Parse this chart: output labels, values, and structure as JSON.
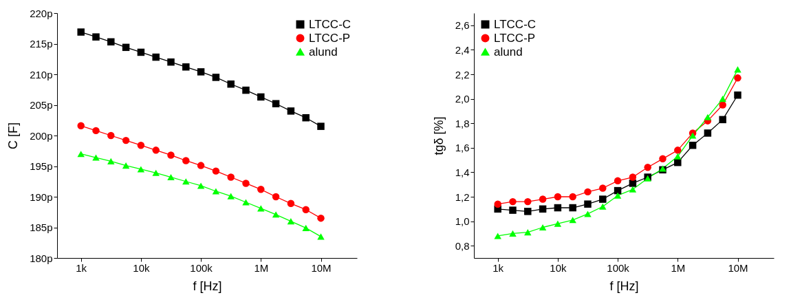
{
  "chart_data": [
    {
      "type": "line",
      "xlabel": "f [Hz]",
      "ylabel": "C [F]",
      "log": "x",
      "legend": "top right",
      "grid": false,
      "x": [
        1000,
        1778,
        3162,
        5623,
        10000,
        17783,
        31623,
        56234,
        100000,
        177828,
        316228,
        562341,
        1000000,
        1778279,
        3162278,
        5623413,
        10000000
      ],
      "xlim": [
        400,
        40000000
      ],
      "xticks": [
        {
          "value": 1000,
          "label": "1k"
        },
        {
          "value": 10000,
          "label": "10k"
        },
        {
          "value": 100000,
          "label": "100k"
        },
        {
          "value": 1000000,
          "label": "1M"
        },
        {
          "value": 10000000,
          "label": "10M"
        }
      ],
      "ylim": [
        180,
        220
      ],
      "yticks": [
        {
          "value": 180,
          "label": "180p"
        },
        {
          "value": 185,
          "label": "185p"
        },
        {
          "value": 190,
          "label": "190p"
        },
        {
          "value": 195,
          "label": "195p"
        },
        {
          "value": 200,
          "label": "200p"
        },
        {
          "value": 205,
          "label": "205p"
        },
        {
          "value": 210,
          "label": "210p"
        },
        {
          "value": 215,
          "label": "215p"
        },
        {
          "value": 220,
          "label": "220p"
        }
      ],
      "series": [
        {
          "name": "LTCC-C",
          "color": "#000000",
          "marker": "square",
          "values": [
            216.9,
            216.1,
            215.3,
            214.4,
            213.6,
            212.8,
            212.0,
            211.2,
            210.4,
            209.5,
            208.4,
            207.4,
            206.3,
            205.2,
            204.0,
            202.9,
            201.5
          ]
        },
        {
          "name": "LTCC-P",
          "color": "#ff0000",
          "marker": "circle",
          "values": [
            201.6,
            200.8,
            200.0,
            199.2,
            198.4,
            197.6,
            196.8,
            195.9,
            195.1,
            194.2,
            193.2,
            192.2,
            191.2,
            190.0,
            188.9,
            187.9,
            186.5
          ]
        },
        {
          "name": "alund",
          "color": "#00ff00",
          "marker": "triangle",
          "values": [
            197.0,
            196.4,
            195.8,
            195.1,
            194.5,
            193.9,
            193.2,
            192.5,
            191.8,
            190.9,
            190.1,
            189.1,
            188.1,
            187.1,
            186.0,
            184.9,
            183.5
          ]
        }
      ]
    },
    {
      "type": "line",
      "xlabel": "f [Hz]",
      "ylabel": "tgδ [%]",
      "log": "x",
      "legend": "top left",
      "grid": false,
      "x": [
        1000,
        1778,
        3162,
        5623,
        10000,
        17783,
        31623,
        56234,
        100000,
        177828,
        316228,
        562341,
        1000000,
        1778279,
        3162278,
        5623413,
        10000000
      ],
      "xlim": [
        400,
        40000000
      ],
      "xticks": [
        {
          "value": 1000,
          "label": "1k"
        },
        {
          "value": 10000,
          "label": "10k"
        },
        {
          "value": 100000,
          "label": "100k"
        },
        {
          "value": 1000000,
          "label": "1M"
        },
        {
          "value": 10000000,
          "label": "10M"
        }
      ],
      "ylim": [
        0.7,
        2.7
      ],
      "yticks": [
        {
          "value": 0.8,
          "label": "0,8"
        },
        {
          "value": 1.0,
          "label": "1,0"
        },
        {
          "value": 1.2,
          "label": "1,2"
        },
        {
          "value": 1.4,
          "label": "1,4"
        },
        {
          "value": 1.6,
          "label": "1,6"
        },
        {
          "value": 1.8,
          "label": "1,8"
        },
        {
          "value": 2.0,
          "label": "2,0"
        },
        {
          "value": 2.2,
          "label": "2,2"
        },
        {
          "value": 2.4,
          "label": "2,4"
        },
        {
          "value": 2.6,
          "label": "2,6"
        }
      ],
      "series": [
        {
          "name": "LTCC-C",
          "color": "#000000",
          "marker": "square",
          "values": [
            1.1,
            1.09,
            1.08,
            1.1,
            1.11,
            1.11,
            1.14,
            1.18,
            1.25,
            1.31,
            1.36,
            1.42,
            1.48,
            1.62,
            1.72,
            1.83,
            2.03
          ]
        },
        {
          "name": "LTCC-P",
          "color": "#ff0000",
          "marker": "circle",
          "values": [
            1.14,
            1.16,
            1.16,
            1.18,
            1.2,
            1.2,
            1.24,
            1.27,
            1.33,
            1.36,
            1.44,
            1.51,
            1.58,
            1.72,
            1.82,
            1.95,
            2.17
          ]
        },
        {
          "name": "alund",
          "color": "#00ff00",
          "marker": "triangle",
          "values": [
            0.88,
            0.9,
            0.91,
            0.95,
            0.98,
            1.01,
            1.06,
            1.12,
            1.21,
            1.26,
            1.35,
            1.43,
            1.53,
            1.7,
            1.85,
            2.0,
            2.24
          ]
        }
      ]
    }
  ]
}
